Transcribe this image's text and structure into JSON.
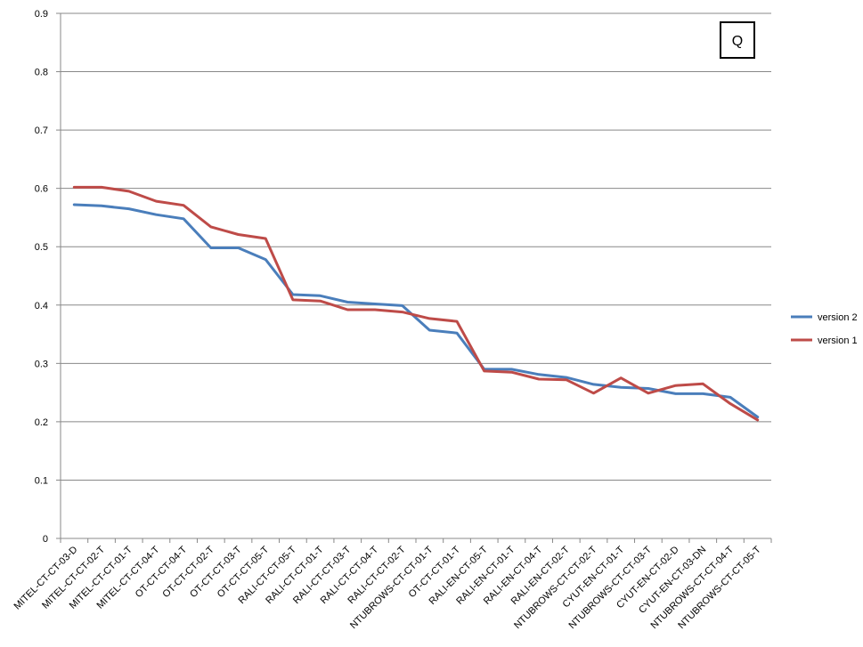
{
  "chart_data": {
    "type": "line",
    "title": "",
    "xlabel": "",
    "ylabel": "",
    "ylim": [
      0,
      0.9
    ],
    "yticks": [
      0,
      0.1,
      0.2,
      0.3,
      0.4,
      0.5,
      0.6,
      0.7,
      0.8,
      0.9
    ],
    "ytick_labels": [
      "0",
      "0.1",
      "0.2",
      "0.3",
      "0.4",
      "0.5",
      "0.6",
      "0.7",
      "0.8",
      "0.9"
    ],
    "grid": true,
    "legend_position": "right",
    "corner_label": "Q",
    "categories": [
      "MITEL-CT-CT-03-D",
      "MITEL-CT-CT-02-T",
      "MITEL-CT-CT-01-T",
      "MITEL-CT-CT-04-T",
      "OT-CT-CT-04-T",
      "OT-CT-CT-02-T",
      "OT-CT-CT-03-T",
      "OT-CT-CT-05-T",
      "RALI-CT-CT-05-T",
      "RALI-CT-CT-01-T",
      "RALI-CT-CT-03-T",
      "RALI-CT-CT-04-T",
      "RALI-CT-CT-02-T",
      "NTUBROWS-CT-CT-01-T",
      "OT-CT-CT-01-T",
      "RALI-EN-CT-05-T",
      "RALI-EN-CT-01-T",
      "RALI-EN-CT-04-T",
      "RALI-EN-CT-02-T",
      "NTUBROWS-CT-CT-02-T",
      "CYUT-EN-CT-01-T",
      "NTUBROWS-CT-CT-03-T",
      "CYUT-EN-CT-02-D",
      "CYUT-EN-CT-03-DN",
      "NTUBROWS-CT-CT-04-T",
      "NTUBROWS-CT-CT-05-T"
    ],
    "series": [
      {
        "name": "version 2",
        "color": "#4A7EBB",
        "values": [
          0.572,
          0.57,
          0.565,
          0.555,
          0.548,
          0.498,
          0.498,
          0.478,
          0.418,
          0.416,
          0.405,
          0.402,
          0.399,
          0.357,
          0.352,
          0.29,
          0.29,
          0.281,
          0.276,
          0.264,
          0.259,
          0.257,
          0.248,
          0.248,
          0.242,
          0.208
        ]
      },
      {
        "name": "version 1",
        "color": "#BE4B48",
        "values": [
          0.602,
          0.602,
          0.595,
          0.578,
          0.571,
          0.534,
          0.521,
          0.514,
          0.409,
          0.407,
          0.392,
          0.392,
          0.388,
          0.377,
          0.372,
          0.287,
          0.285,
          0.273,
          0.272,
          0.249,
          0.275,
          0.249,
          0.262,
          0.265,
          0.231,
          0.203
        ]
      }
    ]
  }
}
